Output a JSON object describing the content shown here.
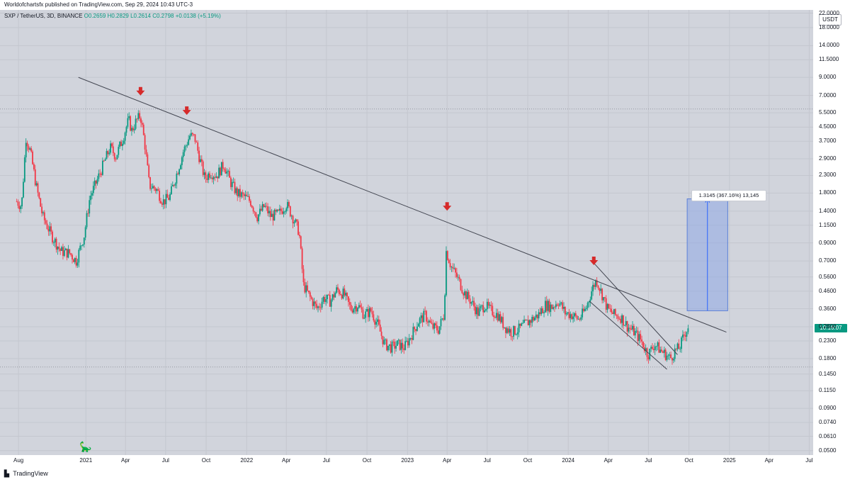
{
  "header": {
    "text": "Worldofchartsfx published on TradingView.com, Sep 29, 2024 10:43 UTC-3"
  },
  "symbol": {
    "name": "SXP / TetherUS, 3D, BINANCE",
    "open": "O0.2659",
    "high": "H0.2829",
    "low": "L0.2614",
    "close": "C0.2798",
    "change": "+0.0138 (+5.19%)"
  },
  "currency_badge": "USDT",
  "time_badge": "10:16:07",
  "measure_label": "1.3145 (367.16%) 13,145",
  "footer": {
    "logo_icon": "tradingview-logo-icon",
    "brand": "TradingView"
  },
  "colors": {
    "up": "#089981",
    "down": "#f23645",
    "background": "#d1d4dc",
    "measure": "#8fa8e6",
    "trend": "#434651",
    "arrow": "#d62a2a"
  },
  "chart_data": {
    "type": "candlestick",
    "scale": "log",
    "ylim": [
      0.047,
      23
    ],
    "xlim": [
      "2020-06-20",
      "2025-07-10"
    ],
    "y_ticks": [
      "22.0000",
      "18.0000",
      "14.0000",
      "11.5000",
      "9.0000",
      "7.0000",
      "5.5000",
      "4.5000",
      "3.7000",
      "2.9000",
      "2.3000",
      "1.8000",
      "1.4000",
      "1.1500",
      "0.9000",
      "0.7000",
      "0.5600",
      "0.4600",
      "0.3600",
      "0.2800",
      "0.2300",
      "0.1800",
      "0.1450",
      "0.1150",
      "0.0900",
      "0.0740",
      "0.0610",
      "0.0500"
    ],
    "y_tick_values": [
      22,
      18,
      14,
      11.5,
      9,
      7,
      5.5,
      4.5,
      3.7,
      2.9,
      2.3,
      1.8,
      1.4,
      1.15,
      0.9,
      0.7,
      0.56,
      0.46,
      0.36,
      0.28,
      0.23,
      0.18,
      0.145,
      0.115,
      0.09,
      0.074,
      0.061,
      0.05
    ],
    "x_ticks": [
      {
        "label": "Aug",
        "date": "2020-08-01"
      },
      {
        "label": "2021",
        "date": "2021-01-01"
      },
      {
        "label": "Apr",
        "date": "2021-04-01"
      },
      {
        "label": "Jul",
        "date": "2021-07-01"
      },
      {
        "label": "Oct",
        "date": "2021-10-01"
      },
      {
        "label": "2022",
        "date": "2022-01-01"
      },
      {
        "label": "Apr",
        "date": "2022-04-01"
      },
      {
        "label": "Jul",
        "date": "2022-07-01"
      },
      {
        "label": "Oct",
        "date": "2022-10-01"
      },
      {
        "label": "2023",
        "date": "2023-01-01"
      },
      {
        "label": "Apr",
        "date": "2023-04-01"
      },
      {
        "label": "Jul",
        "date": "2023-07-01"
      },
      {
        "label": "Oct",
        "date": "2023-10-01"
      },
      {
        "label": "2024",
        "date": "2024-01-01"
      },
      {
        "label": "Apr",
        "date": "2024-04-01"
      },
      {
        "label": "Jul",
        "date": "2024-07-01"
      },
      {
        "label": "Oct",
        "date": "2024-10-01"
      },
      {
        "label": "2025",
        "date": "2025-01-01"
      },
      {
        "label": "Apr",
        "date": "2025-04-01"
      },
      {
        "label": "Jul",
        "date": "2025-07-01"
      }
    ],
    "price_path": [
      [
        "2020-07-28",
        1.6
      ],
      [
        "2020-08-08",
        1.5
      ],
      [
        "2020-08-18",
        3.9
      ],
      [
        "2020-08-28",
        3.2
      ],
      [
        "2020-09-10",
        2.0
      ],
      [
        "2020-09-25",
        1.3
      ],
      [
        "2020-10-15",
        1.0
      ],
      [
        "2020-11-05",
        0.8
      ],
      [
        "2020-11-25",
        0.78
      ],
      [
        "2020-12-10",
        0.7
      ],
      [
        "2020-12-28",
        1.0
      ],
      [
        "2021-01-10",
        1.7
      ],
      [
        "2021-01-25",
        2.1
      ],
      [
        "2021-02-10",
        2.7
      ],
      [
        "2021-02-25",
        3.4
      ],
      [
        "2021-03-10",
        3.0
      ],
      [
        "2021-03-25",
        3.8
      ],
      [
        "2021-04-08",
        5.0
      ],
      [
        "2021-04-15",
        4.3
      ],
      [
        "2021-04-25",
        4.9
      ],
      [
        "2021-05-05",
        5.3
      ],
      [
        "2021-05-15",
        3.5
      ],
      [
        "2021-05-25",
        2.0
      ],
      [
        "2021-06-10",
        1.9
      ],
      [
        "2021-06-25",
        1.6
      ],
      [
        "2021-07-10",
        1.7
      ],
      [
        "2021-07-25",
        2.3
      ],
      [
        "2021-08-10",
        3.2
      ],
      [
        "2021-08-25",
        4.0
      ],
      [
        "2021-09-05",
        3.9
      ],
      [
        "2021-09-15",
        3.0
      ],
      [
        "2021-09-28",
        2.2
      ],
      [
        "2021-10-10",
        2.4
      ],
      [
        "2021-10-25",
        2.3
      ],
      [
        "2021-11-10",
        2.7
      ],
      [
        "2021-11-25",
        2.1
      ],
      [
        "2021-12-10",
        1.8
      ],
      [
        "2021-12-28",
        1.7
      ],
      [
        "2022-01-10",
        1.6
      ],
      [
        "2022-01-25",
        1.3
      ],
      [
        "2022-02-10",
        1.5
      ],
      [
        "2022-02-25",
        1.3
      ],
      [
        "2022-03-15",
        1.35
      ],
      [
        "2022-04-01",
        1.55
      ],
      [
        "2022-04-15",
        1.3
      ],
      [
        "2022-04-30",
        1.05
      ],
      [
        "2022-05-10",
        0.5
      ],
      [
        "2022-05-25",
        0.42
      ],
      [
        "2022-06-10",
        0.36
      ],
      [
        "2022-06-25",
        0.42
      ],
      [
        "2022-07-10",
        0.4
      ],
      [
        "2022-07-25",
        0.47
      ],
      [
        "2022-08-10",
        0.44
      ],
      [
        "2022-08-25",
        0.36
      ],
      [
        "2022-09-10",
        0.38
      ],
      [
        "2022-09-25",
        0.33
      ],
      [
        "2022-10-10",
        0.35
      ],
      [
        "2022-10-25",
        0.29
      ],
      [
        "2022-11-10",
        0.22
      ],
      [
        "2022-11-25",
        0.21
      ],
      [
        "2022-12-10",
        0.22
      ],
      [
        "2022-12-25",
        0.21
      ],
      [
        "2023-01-10",
        0.25
      ],
      [
        "2023-01-25",
        0.3
      ],
      [
        "2023-02-10",
        0.33
      ],
      [
        "2023-02-25",
        0.28
      ],
      [
        "2023-03-12",
        0.27
      ],
      [
        "2023-03-25",
        0.33
      ],
      [
        "2023-03-30",
        0.8
      ],
      [
        "2023-04-10",
        0.65
      ],
      [
        "2023-04-25",
        0.55
      ],
      [
        "2023-05-10",
        0.45
      ],
      [
        "2023-05-25",
        0.4
      ],
      [
        "2023-06-10",
        0.34
      ],
      [
        "2023-06-25",
        0.38
      ],
      [
        "2023-07-10",
        0.35
      ],
      [
        "2023-07-25",
        0.33
      ],
      [
        "2023-08-10",
        0.28
      ],
      [
        "2023-08-25",
        0.26
      ],
      [
        "2023-09-10",
        0.27
      ],
      [
        "2023-09-25",
        0.29
      ],
      [
        "2023-10-10",
        0.31
      ],
      [
        "2023-10-25",
        0.33
      ],
      [
        "2023-11-10",
        0.38
      ],
      [
        "2023-11-25",
        0.37
      ],
      [
        "2023-12-10",
        0.4
      ],
      [
        "2023-12-25",
        0.34
      ],
      [
        "2024-01-10",
        0.33
      ],
      [
        "2024-01-25",
        0.31
      ],
      [
        "2024-02-10",
        0.36
      ],
      [
        "2024-02-25",
        0.48
      ],
      [
        "2024-03-05",
        0.54
      ],
      [
        "2024-03-15",
        0.46
      ],
      [
        "2024-03-30",
        0.36
      ],
      [
        "2024-04-15",
        0.33
      ],
      [
        "2024-04-30",
        0.32
      ],
      [
        "2024-05-15",
        0.28
      ],
      [
        "2024-05-30",
        0.26
      ],
      [
        "2024-06-15",
        0.23
      ],
      [
        "2024-06-30",
        0.19
      ],
      [
        "2024-07-15",
        0.22
      ],
      [
        "2024-07-30",
        0.2
      ],
      [
        "2024-08-10",
        0.19
      ],
      [
        "2024-08-20",
        0.18
      ],
      [
        "2024-08-30",
        0.2
      ],
      [
        "2024-09-10",
        0.21
      ],
      [
        "2024-09-20",
        0.25
      ],
      [
        "2024-09-29",
        0.2798
      ]
    ],
    "trendlines": [
      {
        "name": "main-resistance",
        "from": [
          "2020-12-15",
          9.0
        ],
        "to": [
          "2024-12-25",
          0.26
        ]
      },
      {
        "name": "wedge-upper",
        "from": [
          "2024-02-28",
          0.68
        ],
        "to": [
          "2024-09-05",
          0.19
        ]
      },
      {
        "name": "wedge-lower",
        "from": [
          "2024-02-18",
          0.4
        ],
        "to": [
          "2024-08-12",
          0.155
        ]
      }
    ],
    "horizontal_lines": [
      5.8,
      0.16
    ],
    "arrows": [
      {
        "date": "2021-05-05",
        "price": 7.2
      },
      {
        "date": "2021-08-18",
        "price": 5.5
      },
      {
        "date": "2023-04-01",
        "price": 1.45
      },
      {
        "date": "2024-02-28",
        "price": 0.68
      }
    ],
    "measure_box": {
      "x_from": "2024-09-27",
      "x_to": "2024-12-28",
      "y_from": 0.35,
      "y_to": 1.66
    }
  }
}
